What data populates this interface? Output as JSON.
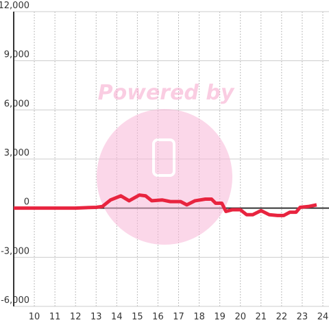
{
  "chart_data": {
    "type": "line",
    "watermark": "Powered by",
    "x": [
      9,
      10,
      11,
      12,
      12.5,
      13,
      13.3,
      13.7,
      14.2,
      14.6,
      15.1,
      15.4,
      15.7,
      16.2,
      16.6,
      17.1,
      17.4,
      17.8,
      18.3,
      18.6,
      18.8,
      19.1,
      19.3,
      19.6,
      20.0,
      20.3,
      20.6,
      21.0,
      21.4,
      21.8,
      22.1,
      22.4,
      22.7,
      22.9,
      23.3,
      23.7
    ],
    "series": [
      {
        "color": "#e8243f",
        "values": [
          0,
          0,
          0,
          0,
          30,
          50,
          100,
          500,
          750,
          450,
          800,
          750,
          450,
          500,
          400,
          400,
          200,
          450,
          550,
          550,
          300,
          300,
          -200,
          -100,
          -100,
          -400,
          -400,
          -150,
          -400,
          -450,
          -450,
          -250,
          -250,
          50,
          100,
          200
        ]
      }
    ],
    "xlim": [
      9,
      24.3
    ],
    "xticks": [
      10,
      11,
      12,
      13,
      14,
      15,
      16,
      17,
      18,
      19,
      20,
      21,
      22,
      23,
      24
    ],
    "ylim": [
      -6000,
      12000
    ],
    "yticks": [
      {
        "value": -6000,
        "label": "-6,000"
      },
      {
        "value": -3000,
        "label": "-3,000"
      },
      0,
      {
        "value": 3000,
        "label": "3,000"
      },
      {
        "value": 6000,
        "label": "6,000"
      },
      {
        "value": 9000,
        "label": "9,000"
      },
      {
        "value": 12000,
        "label": "12,000"
      }
    ],
    "grid": true
  }
}
